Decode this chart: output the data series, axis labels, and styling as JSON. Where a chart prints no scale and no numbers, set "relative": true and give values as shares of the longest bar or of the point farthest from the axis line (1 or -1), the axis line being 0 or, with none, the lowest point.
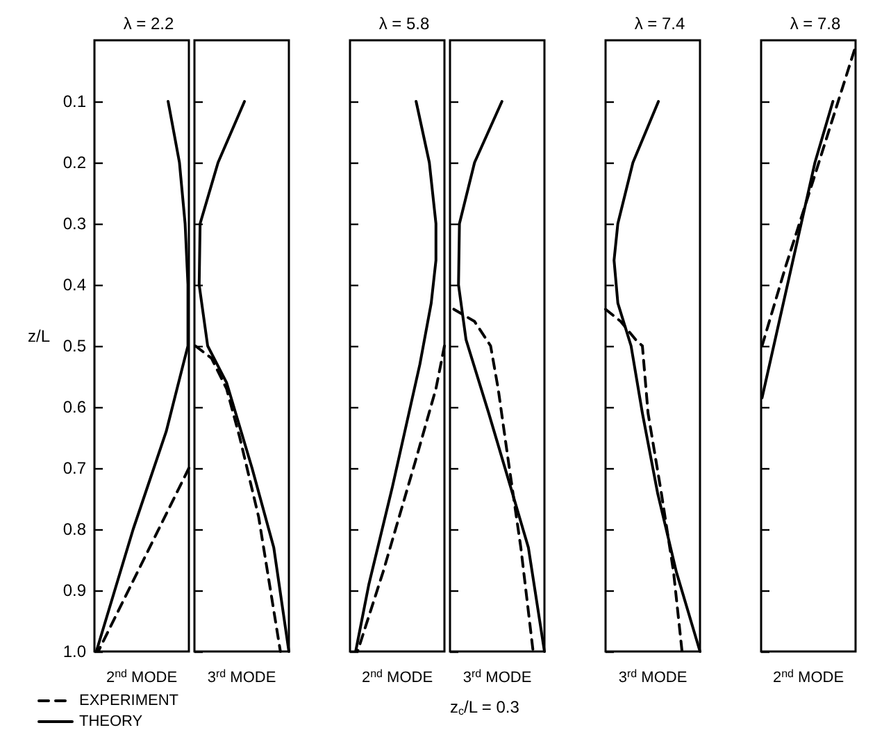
{
  "chart_data": [
    {
      "type": "line",
      "orientation": "horizontal",
      "title": "λ = 2.2",
      "xlabel": "2$^{nd}$ MODE",
      "ylabel": "z/L",
      "relative": true,
      "ylim": [
        1.0,
        0
      ],
      "yticks": [
        0.1,
        0.2,
        0.3,
        0.4,
        0.5,
        0.6,
        0.7,
        0.8,
        0.9,
        {
          "value": 1.0,
          "label": "1.0"
        }
      ],
      "tick_labels": "y",
      "legend": "bottom",
      "series": [
        {
          "name": "EXPERIMENT",
          "color": "#000000",
          "line_style": "dashed",
          "x": [
            0.7,
            1.0
          ],
          "values": [
            1.0,
            0.04
          ]
        },
        {
          "name": "THEORY",
          "color": "#000000",
          "line_style": "solid",
          "x": [
            0.1,
            0.2,
            0.3,
            0.4,
            0.5,
            0.53,
            0.64,
            0.8,
            1.0
          ],
          "values": [
            0.78,
            0.9,
            0.96,
            0.99,
            0.99,
            0.94,
            0.76,
            0.41,
            0.02
          ]
        }
      ]
    },
    {
      "type": "line",
      "orientation": "horizontal",
      "xlabel": "3$^{rd}$ MODE",
      "relative": true,
      "ylim": [
        1.0,
        0
      ],
      "yticks": [
        0.1,
        0.2,
        0.3,
        0.4,
        0.5,
        0.6,
        0.7,
        0.8,
        0.9,
        1.0
      ],
      "tick_labels": false,
      "series": [
        {
          "color": "#000000",
          "line_style": "dashed",
          "x": [
            0.5,
            0.52,
            0.57,
            0.65,
            0.78,
            1.0
          ],
          "values": [
            0.01,
            0.18,
            0.34,
            0.48,
            0.68,
            0.91
          ]
        },
        {
          "color": "#000000",
          "line_style": "solid",
          "x": [
            0.1,
            0.2,
            0.3,
            0.4,
            0.5,
            0.56,
            0.7,
            0.83,
            1.0
          ],
          "values": [
            0.53,
            0.25,
            0.06,
            0.05,
            0.14,
            0.34,
            0.61,
            0.84,
            1.0
          ]
        }
      ]
    },
    {
      "type": "line",
      "orientation": "horizontal",
      "title": "λ = 5.8",
      "xlabel": "2$^{nd}$ MODE",
      "relative": true,
      "ylim": [
        1.0,
        0
      ],
      "yticks": [
        0.1,
        0.2,
        0.3,
        0.4,
        0.5,
        0.6,
        0.7,
        0.8,
        0.9,
        1.0
      ],
      "tick_labels": false,
      "series": [
        {
          "color": "#000000",
          "line_style": "dashed",
          "x": [
            0.5,
            0.57,
            0.69,
            0.87,
            1.0
          ],
          "values": [
            1.0,
            0.91,
            0.69,
            0.35,
            0.08
          ]
        },
        {
          "color": "#000000",
          "line_style": "solid",
          "x": [
            0.1,
            0.2,
            0.3,
            0.36,
            0.43,
            0.53,
            0.73,
            0.89,
            1.0
          ],
          "values": [
            0.7,
            0.84,
            0.91,
            0.91,
            0.86,
            0.74,
            0.45,
            0.2,
            0.06
          ]
        }
      ]
    },
    {
      "type": "line",
      "orientation": "horizontal",
      "xlabel": "3$^{rd}$ MODE",
      "relative": true,
      "ylim": [
        1.0,
        0
      ],
      "yticks": [
        0.1,
        0.2,
        0.3,
        0.4,
        0.5,
        0.6,
        0.7,
        0.8,
        0.9,
        1.0
      ],
      "tick_labels": false,
      "annotations": [
        "z$_{c}$/L = 0.3"
      ],
      "series": [
        {
          "color": "#000000",
          "line_style": "dashed",
          "x": [
            0.44,
            0.46,
            0.5,
            0.57,
            0.68,
            0.83,
            1.0
          ],
          "values": [
            0.04,
            0.26,
            0.43,
            0.51,
            0.61,
            0.75,
            0.88
          ]
        },
        {
          "color": "#000000",
          "line_style": "solid",
          "x": [
            0.1,
            0.2,
            0.3,
            0.4,
            0.49,
            0.61,
            0.73,
            0.83,
            1.0
          ],
          "values": [
            0.55,
            0.26,
            0.1,
            0.09,
            0.17,
            0.41,
            0.64,
            0.83,
            1.0
          ]
        }
      ]
    },
    {
      "type": "line",
      "orientation": "horizontal",
      "title": "λ = 7.4",
      "xlabel": "3$^{rd}$ MODE",
      "relative": true,
      "ylim": [
        1.0,
        0
      ],
      "yticks": [
        0.1,
        0.2,
        0.3,
        0.4,
        0.5,
        0.6,
        0.7,
        0.8,
        0.9,
        1.0
      ],
      "tick_labels": false,
      "series": [
        {
          "color": "#000000",
          "line_style": "dashed",
          "x": [
            0.44,
            0.46,
            0.49,
            0.5,
            0.61,
            0.74,
            0.87,
            1.0
          ],
          "values": [
            0.0,
            0.16,
            0.32,
            0.39,
            0.45,
            0.59,
            0.72,
            0.81
          ]
        },
        {
          "color": "#000000",
          "line_style": "solid",
          "x": [
            0.1,
            0.2,
            0.3,
            0.36,
            0.43,
            0.5,
            0.61,
            0.74,
            0.87,
            1.0
          ],
          "values": [
            0.56,
            0.29,
            0.13,
            0.09,
            0.13,
            0.27,
            0.39,
            0.55,
            0.75,
            1.0
          ]
        }
      ]
    },
    {
      "type": "line",
      "orientation": "horizontal",
      "title": "λ = 7.8",
      "xlabel": "2$^{nd}$ MODE",
      "relative": true,
      "ylim": [
        1.0,
        0
      ],
      "yticks": [
        0.1,
        0.2,
        0.3,
        0.4,
        0.5,
        0.6,
        0.7,
        0.8,
        0.9,
        1.0
      ],
      "tick_labels": false,
      "series": [
        {
          "color": "#000000",
          "line_style": "dashed",
          "x": [
            0.5,
            0.37,
            0.23,
            0.01
          ],
          "values": [
            0.01,
            0.26,
            0.55,
            1.0
          ]
        },
        {
          "color": "#000000",
          "line_style": "solid",
          "x": [
            0.585,
            0.2,
            0.1
          ],
          "values": [
            0.01,
            0.57,
            0.76
          ]
        }
      ]
    }
  ]
}
